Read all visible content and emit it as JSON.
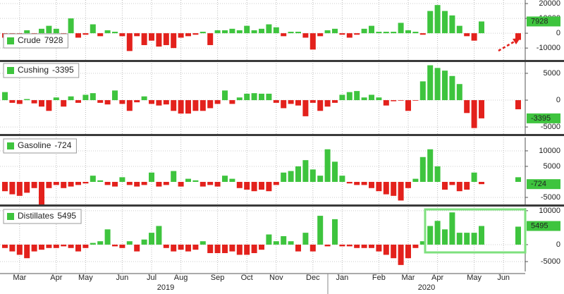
{
  "chart_data": [
    {
      "type": "bar",
      "name": "Crude",
      "latest": 7928,
      "color": "#3ec43e",
      "negative_color": "#e3211c",
      "values": [
        -3000,
        -2000,
        -4000,
        2000,
        -3000,
        3000,
        5000,
        3000,
        -2000,
        10000,
        -3000,
        -1000,
        6000,
        -2000,
        2000,
        1000,
        -2000,
        -12000,
        -2000,
        -8000,
        -5000,
        -9000,
        -8000,
        -10000,
        -3000,
        -2000,
        -1000,
        1000,
        -8000,
        2000,
        2000,
        3000,
        2000,
        5000,
        2000,
        3000,
        6000,
        4000,
        -2000,
        1000,
        1000,
        -3000,
        -11000,
        -2000,
        2000,
        3000,
        -1000,
        -3000,
        -1000,
        3000,
        5000,
        1000,
        1000,
        1000,
        7000,
        2000,
        1000,
        -1000,
        15000,
        19000,
        15000,
        12000,
        5000,
        -2000,
        -5000,
        7928,
        null,
        null,
        null,
        null,
        -4500
      ],
      "ylim": [
        -18000,
        22400
      ],
      "yticks": [
        20000,
        10000,
        0,
        -10000
      ]
    },
    {
      "type": "bar",
      "name": "Cushing",
      "latest": -3395,
      "color": "#3ec43e",
      "negative_color": "#e3211c",
      "values": [
        1500,
        -500,
        -700,
        200,
        -600,
        -1200,
        -2000,
        500,
        -1200,
        700,
        -500,
        1000,
        1300,
        -500,
        -800,
        1800,
        -700,
        -2000,
        -400,
        700,
        -700,
        -1000,
        -800,
        -2000,
        -2500,
        -2500,
        -2000,
        -2000,
        -1500,
        -700,
        1800,
        -700,
        500,
        1200,
        1300,
        1200,
        1200,
        -500,
        -1500,
        -700,
        -1000,
        -3000,
        -500,
        -2000,
        -1200,
        -500,
        1000,
        1500,
        1700,
        500,
        1000,
        500,
        -1000,
        -200,
        -100,
        -2000,
        -100,
        3500,
        6500,
        6000,
        5500,
        4500,
        3000,
        -2400,
        -5200,
        -3395,
        null,
        null,
        null,
        null,
        -1700
      ],
      "ylim": [
        -6300,
        7100
      ],
      "yticks": [
        5000,
        0,
        -5000
      ]
    },
    {
      "type": "bar",
      "name": "Gasoline",
      "latest": -724,
      "color": "#3ec43e",
      "negative_color": "#e3211c",
      "values": [
        -3000,
        -4000,
        -4500,
        -3500,
        -2000,
        -7500,
        -2000,
        -1000,
        -2000,
        -1500,
        -1000,
        -500,
        2000,
        500,
        -1000,
        -1500,
        1500,
        -1000,
        -1500,
        -1000,
        3000,
        -1500,
        -1000,
        3500,
        -1500,
        1000,
        500,
        -1500,
        -1000,
        -1500,
        2000,
        1000,
        -2000,
        -2500,
        -3000,
        -2500,
        -3000,
        -1000,
        3000,
        3500,
        5000,
        7000,
        4000,
        2000,
        10500,
        6500,
        2000,
        -500,
        -1000,
        -1000,
        -2000,
        -3000,
        -4000,
        -4500,
        -6000,
        -2000,
        1000,
        8000,
        10500,
        5000,
        -2500,
        -1000,
        -3000,
        -2500,
        3000,
        -724,
        null,
        null,
        null,
        null,
        1500
      ],
      "ylim": [
        -7270,
        14300
      ],
      "yticks": [
        10000,
        5000,
        -5000
      ]
    },
    {
      "type": "bar",
      "name": "Distillates",
      "latest": 5495,
      "color": "#3ec43e",
      "negative_color": "#e3211c",
      "values": [
        -1000,
        -2000,
        -3000,
        -4000,
        -2000,
        -1500,
        -1000,
        -1000,
        -500,
        -1000,
        -2000,
        -1000,
        500,
        1000,
        4500,
        -500,
        -1000,
        1000,
        -2000,
        1500,
        3500,
        5500,
        -1000,
        -2000,
        -1500,
        -2000,
        -1500,
        1000,
        -2500,
        -2500,
        -2500,
        -2000,
        -3000,
        -3000,
        -2500,
        -1500,
        3000,
        1000,
        2500,
        1000,
        -2000,
        3500,
        -2000,
        8500,
        -500,
        7500,
        -500,
        -500,
        -1000,
        -1000,
        -1000,
        -2000,
        -3000,
        -4000,
        -6000,
        -4000,
        -1000,
        1000,
        5500,
        7000,
        4500,
        9500,
        3500,
        3500,
        3500,
        5495,
        null,
        null,
        null,
        null,
        5300
      ],
      "ylim": [
        -7900,
        10800
      ],
      "yticks": [
        10000,
        0,
        -5000
      ],
      "categories": [
        null,
        null,
        "Mar",
        null,
        null,
        null,
        null,
        "Apr",
        null,
        null,
        null,
        "May",
        null,
        null,
        null,
        null,
        "Jun",
        null,
        null,
        null,
        "Jul",
        null,
        null,
        null,
        "Aug",
        null,
        null,
        null,
        null,
        "Sep",
        null,
        null,
        null,
        "Oct",
        null,
        null,
        null,
        "Nov",
        null,
        null,
        null,
        null,
        "Dec",
        null,
        null,
        null,
        "Jan",
        null,
        null,
        null,
        null,
        "Feb",
        null,
        null,
        null,
        "Mar",
        null,
        null,
        null,
        "Apr",
        null,
        null,
        null,
        null,
        "May",
        null,
        null,
        null,
        "Jun",
        null,
        null
      ],
      "years": [
        "2019",
        "2020"
      ]
    }
  ]
}
